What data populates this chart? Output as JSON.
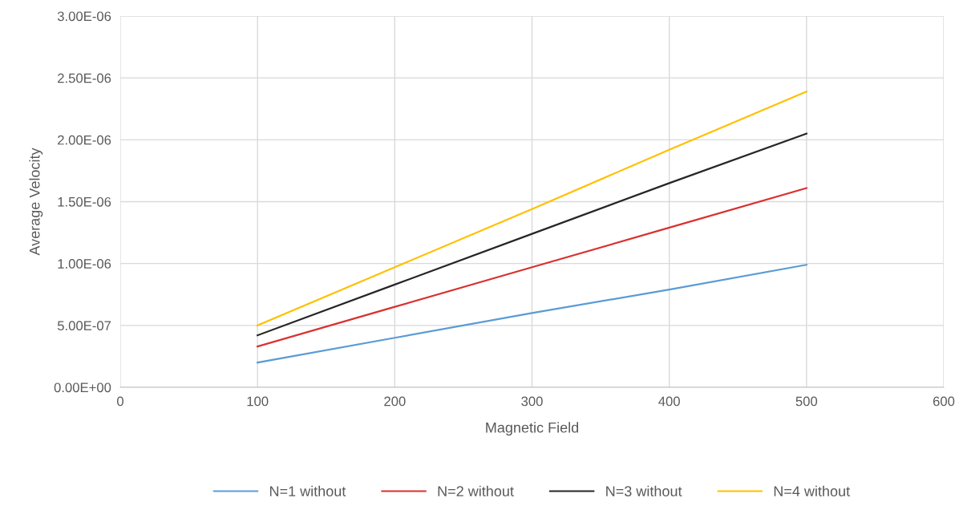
{
  "chart_data": {
    "type": "line",
    "xlabel": "Magnetic Field",
    "ylabel": "Average Velocity",
    "x": [
      100,
      200,
      300,
      400,
      500
    ],
    "series": [
      {
        "name": "N=1 without",
        "color": "#5b9bd5",
        "values": [
          2e-07,
          4e-07,
          6e-07,
          7.9e-07,
          9.9e-07
        ]
      },
      {
        "name": "N=2 without",
        "color": "#d9312f",
        "values": [
          3.3e-07,
          6.5e-07,
          9.7e-07,
          1.29e-06,
          1.61e-06
        ]
      },
      {
        "name": "N=3 without",
        "color": "#262626",
        "values": [
          4.2e-07,
          8.3e-07,
          1.24e-06,
          1.65e-06,
          2.05e-06
        ]
      },
      {
        "name": "N=4 without",
        "color": "#ffc000",
        "values": [
          5e-07,
          9.7e-07,
          1.44e-06,
          1.92e-06,
          2.39e-06
        ]
      }
    ],
    "xlim": [
      0,
      600
    ],
    "xticks": [
      0,
      100,
      200,
      300,
      400,
      500,
      600
    ],
    "ylim": [
      0,
      3e-06
    ],
    "yticks": [
      {
        "value": 0,
        "label": "0.00E+00"
      },
      {
        "value": 5e-07,
        "label": "5.00E-07"
      },
      {
        "value": 1e-06,
        "label": "1.00E-06"
      },
      {
        "value": 1.5e-06,
        "label": "1.50E-06"
      },
      {
        "value": 2e-06,
        "label": "2.00E-06"
      },
      {
        "value": 2.5e-06,
        "label": "2.50E-06"
      },
      {
        "value": 3e-06,
        "label": "3.00E-06"
      }
    ],
    "grid": true,
    "legend": "bottom",
    "marker": "none",
    "line_style": "solid"
  }
}
